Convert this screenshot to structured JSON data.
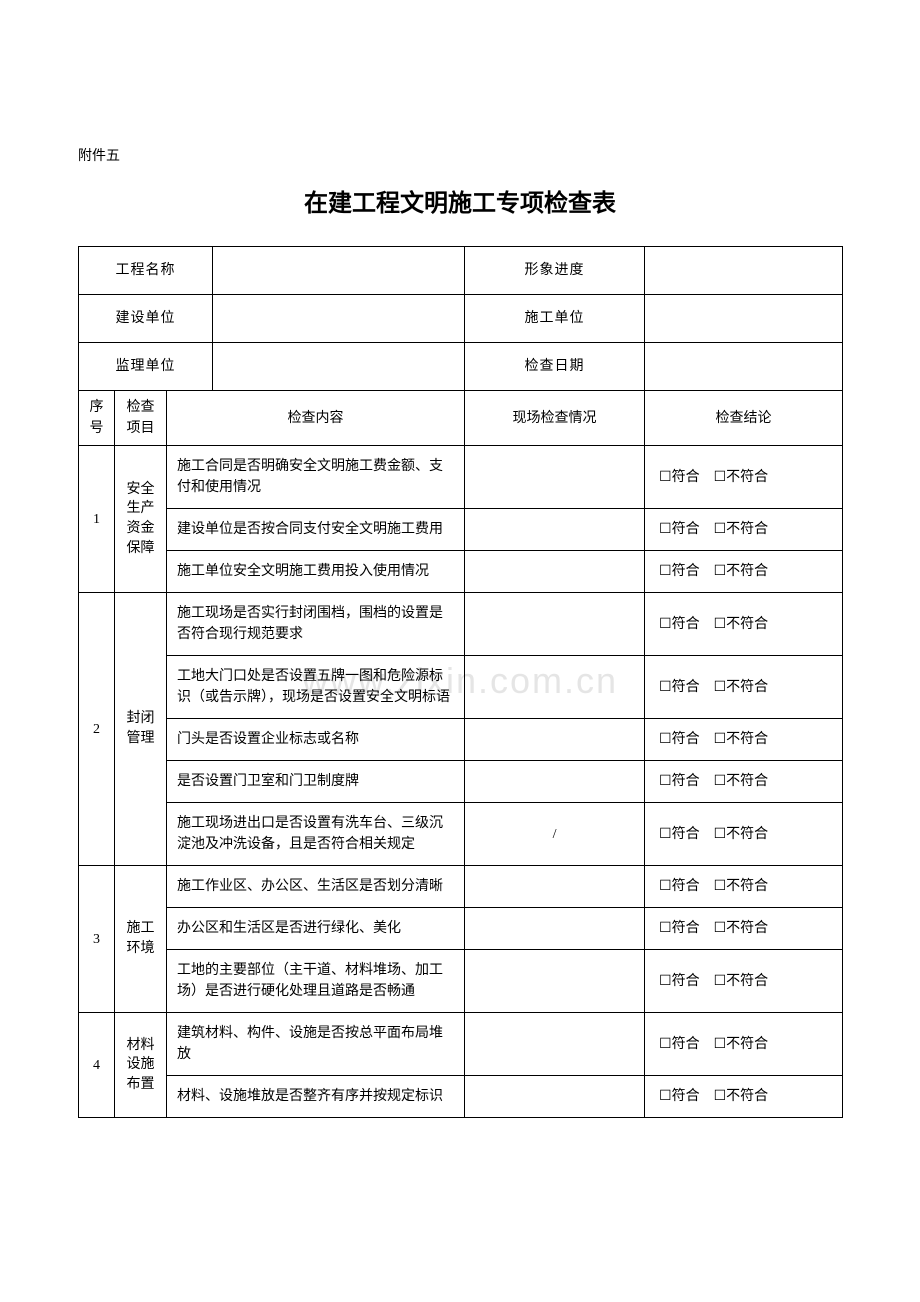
{
  "attachment": "附件五",
  "title": "在建工程文明施工专项检查表",
  "watermark": "www.zixin.com.cn",
  "conclusion_option": "☐符合　☐不符合",
  "info_rows": [
    {
      "label1": "工程名称",
      "label2": "形象进度"
    },
    {
      "label1": "建设单位",
      "label2": "施工单位"
    },
    {
      "label1": "监理单位",
      "label2": "检查日期"
    }
  ],
  "column_headers": {
    "seq": "序号",
    "item": "检查项目",
    "content": "检查内容",
    "situation": "现场检查情况",
    "conclusion": "检查结论"
  },
  "sections": [
    {
      "seq": "1",
      "item": "安全生产资金保障",
      "rows": [
        {
          "content": "施工合同是否明确安全文明施工费金额、支付和使用情况",
          "situation": ""
        },
        {
          "content": "建设单位是否按合同支付安全文明施工费用",
          "situation": ""
        },
        {
          "content": "施工单位安全文明施工费用投入使用情况",
          "situation": ""
        }
      ]
    },
    {
      "seq": "2",
      "item": "封闭管理",
      "rows": [
        {
          "content": "施工现场是否实行封闭围档，围档的设置是否符合现行规范要求",
          "situation": ""
        },
        {
          "content": "工地大门口处是否设置五牌一图和危险源标识（或告示牌），现场是否设置安全文明标语",
          "situation": ""
        },
        {
          "content": "门头是否设置企业标志或名称",
          "situation": ""
        },
        {
          "content": "是否设置门卫室和门卫制度牌",
          "situation": ""
        },
        {
          "content": "施工现场进出口是否设置有洗车台、三级沉淀池及冲洗设备，且是否符合相关规定",
          "situation": "/"
        }
      ]
    },
    {
      "seq": "3",
      "item": "施工环境",
      "rows": [
        {
          "content": "施工作业区、办公区、生活区是否划分清晰",
          "situation": ""
        },
        {
          "content": "办公区和生活区是否进行绿化、美化",
          "situation": ""
        },
        {
          "content": "工地的主要部位（主干道、材料堆场、加工场）是否进行硬化处理且道路是否畅通",
          "situation": ""
        }
      ]
    },
    {
      "seq": "4",
      "item": "材料设施布置",
      "rows": [
        {
          "content": "建筑材料、构件、设施是否按总平面布局堆放",
          "situation": ""
        },
        {
          "content": "材料、设施堆放是否整齐有序并按规定标识",
          "situation": ""
        }
      ]
    }
  ]
}
